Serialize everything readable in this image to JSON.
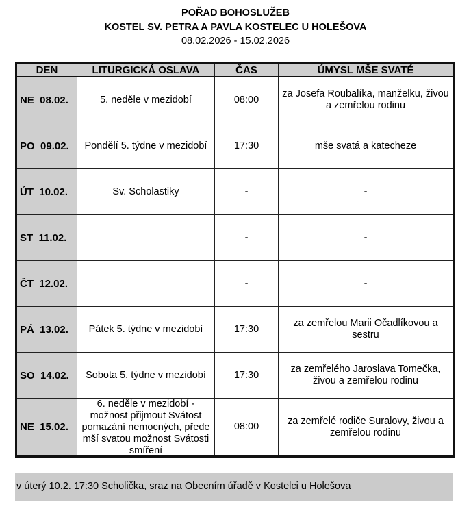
{
  "header": {
    "title": "POŘAD BOHOSLUŽEB",
    "church": "KOSTEL SV. PETRA A PAVLA KOSTELEC U HOLEŠOVA",
    "dates": "08.02.2026 - 15.02.2026"
  },
  "table": {
    "columns": [
      "DEN",
      "LITURGICKÁ OSLAVA",
      "ČAS",
      "ÚMYSL MŠE SVATÉ"
    ],
    "rows": [
      {
        "day": "NE  08.02.",
        "feast": "5. neděle v mezidobí",
        "time": "08:00",
        "intention": "za Josefa Roubalíka, manželku, živou a zemřelou rodinu"
      },
      {
        "day": "PO  09.02.",
        "feast": "Pondělí 5. týdne v mezidobí",
        "time": "17:30",
        "intention": "mše svatá a katecheze"
      },
      {
        "day": "ÚT  10.02.",
        "feast": "Sv. Scholastiky",
        "time": "-",
        "intention": "-"
      },
      {
        "day": "ST  11.02.",
        "feast": "",
        "time": "-",
        "intention": "-"
      },
      {
        "day": "ČT  12.02.",
        "feast": "",
        "time": "-",
        "intention": "-"
      },
      {
        "day": "PÁ  13.02.",
        "feast": "Pátek 5. týdne v mezidobí",
        "time": "17:30",
        "intention": "za zemřelou Marii Očadlíkovou a sestru"
      },
      {
        "day": "SO  14.02.",
        "feast": "Sobota 5. týdne v mezidobí",
        "time": "17:30",
        "intention": "za zemřelého Jaroslava Tomečka, živou a zemřelou rodinu"
      },
      {
        "day": "NE  15.02.",
        "feast": "6. neděle v mezidobí - možnost přijmout Svátost pomazání nemocných, přede mší svatou možnost Svátosti smíření",
        "time": "08:00",
        "intention": "za zemřelé rodiče Suralovy, živou a zemřelou rodinu"
      }
    ]
  },
  "note": "v úterý 10.2. 17:30 Scholička, sraz na Obecním úřadě v Kostelci u Holešova"
}
